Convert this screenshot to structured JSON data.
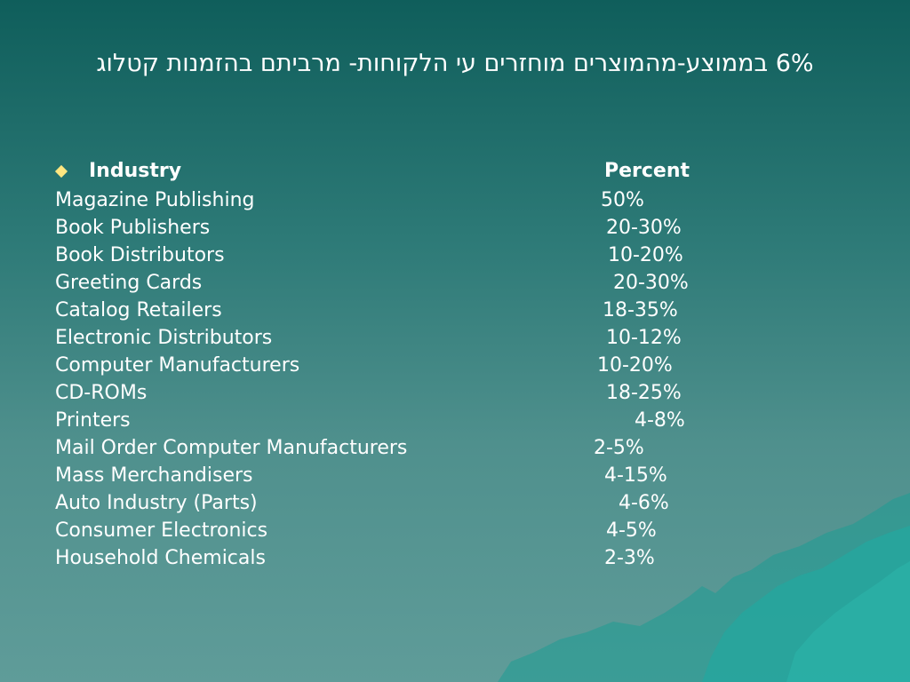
{
  "slide": {
    "title": "6% בממוצע-מהמוצרים מוחזרים עי הלקוחות- מרביתם בהזמנות קטלוג"
  },
  "table": {
    "header": {
      "industry": "Industry",
      "percent": "Percent"
    },
    "rows": [
      {
        "industry": "Magazine Publishing",
        "percent": "50%"
      },
      {
        "industry": "Book Publishers",
        "percent": "20-30%"
      },
      {
        "industry": "Book Distributors",
        "percent": "10-20%"
      },
      {
        "industry": "Greeting Cards",
        "percent": "20-30%"
      },
      {
        "industry": "Catalog Retailers",
        "percent": "18-35%"
      },
      {
        "industry": "Electronic Distributors",
        "percent": "10-12%"
      },
      {
        "industry": "Computer Manufacturers",
        "percent": "10-20%"
      },
      {
        "industry": "CD-ROMs",
        "percent": "18-25%"
      },
      {
        "industry": "Printers",
        "percent": "4-8%"
      },
      {
        "industry": "Mail Order Computer Manufacturers",
        "percent": "2-5%"
      },
      {
        "industry": "Mass Merchandisers",
        "percent": "4-15%"
      },
      {
        "industry": "Auto Industry (Parts)",
        "percent": "4-6%"
      },
      {
        "industry": "Consumer Electronics",
        "percent": "4-5%"
      },
      {
        "industry": "Household Chemicals",
        "percent": "2-3%"
      }
    ]
  },
  "colors": {
    "background_top": "#0f5e5b",
    "background_bottom": "#5f9c99",
    "text": "#ffffff",
    "bullet": "#ffe680",
    "iceberg": "#1e9c94"
  }
}
